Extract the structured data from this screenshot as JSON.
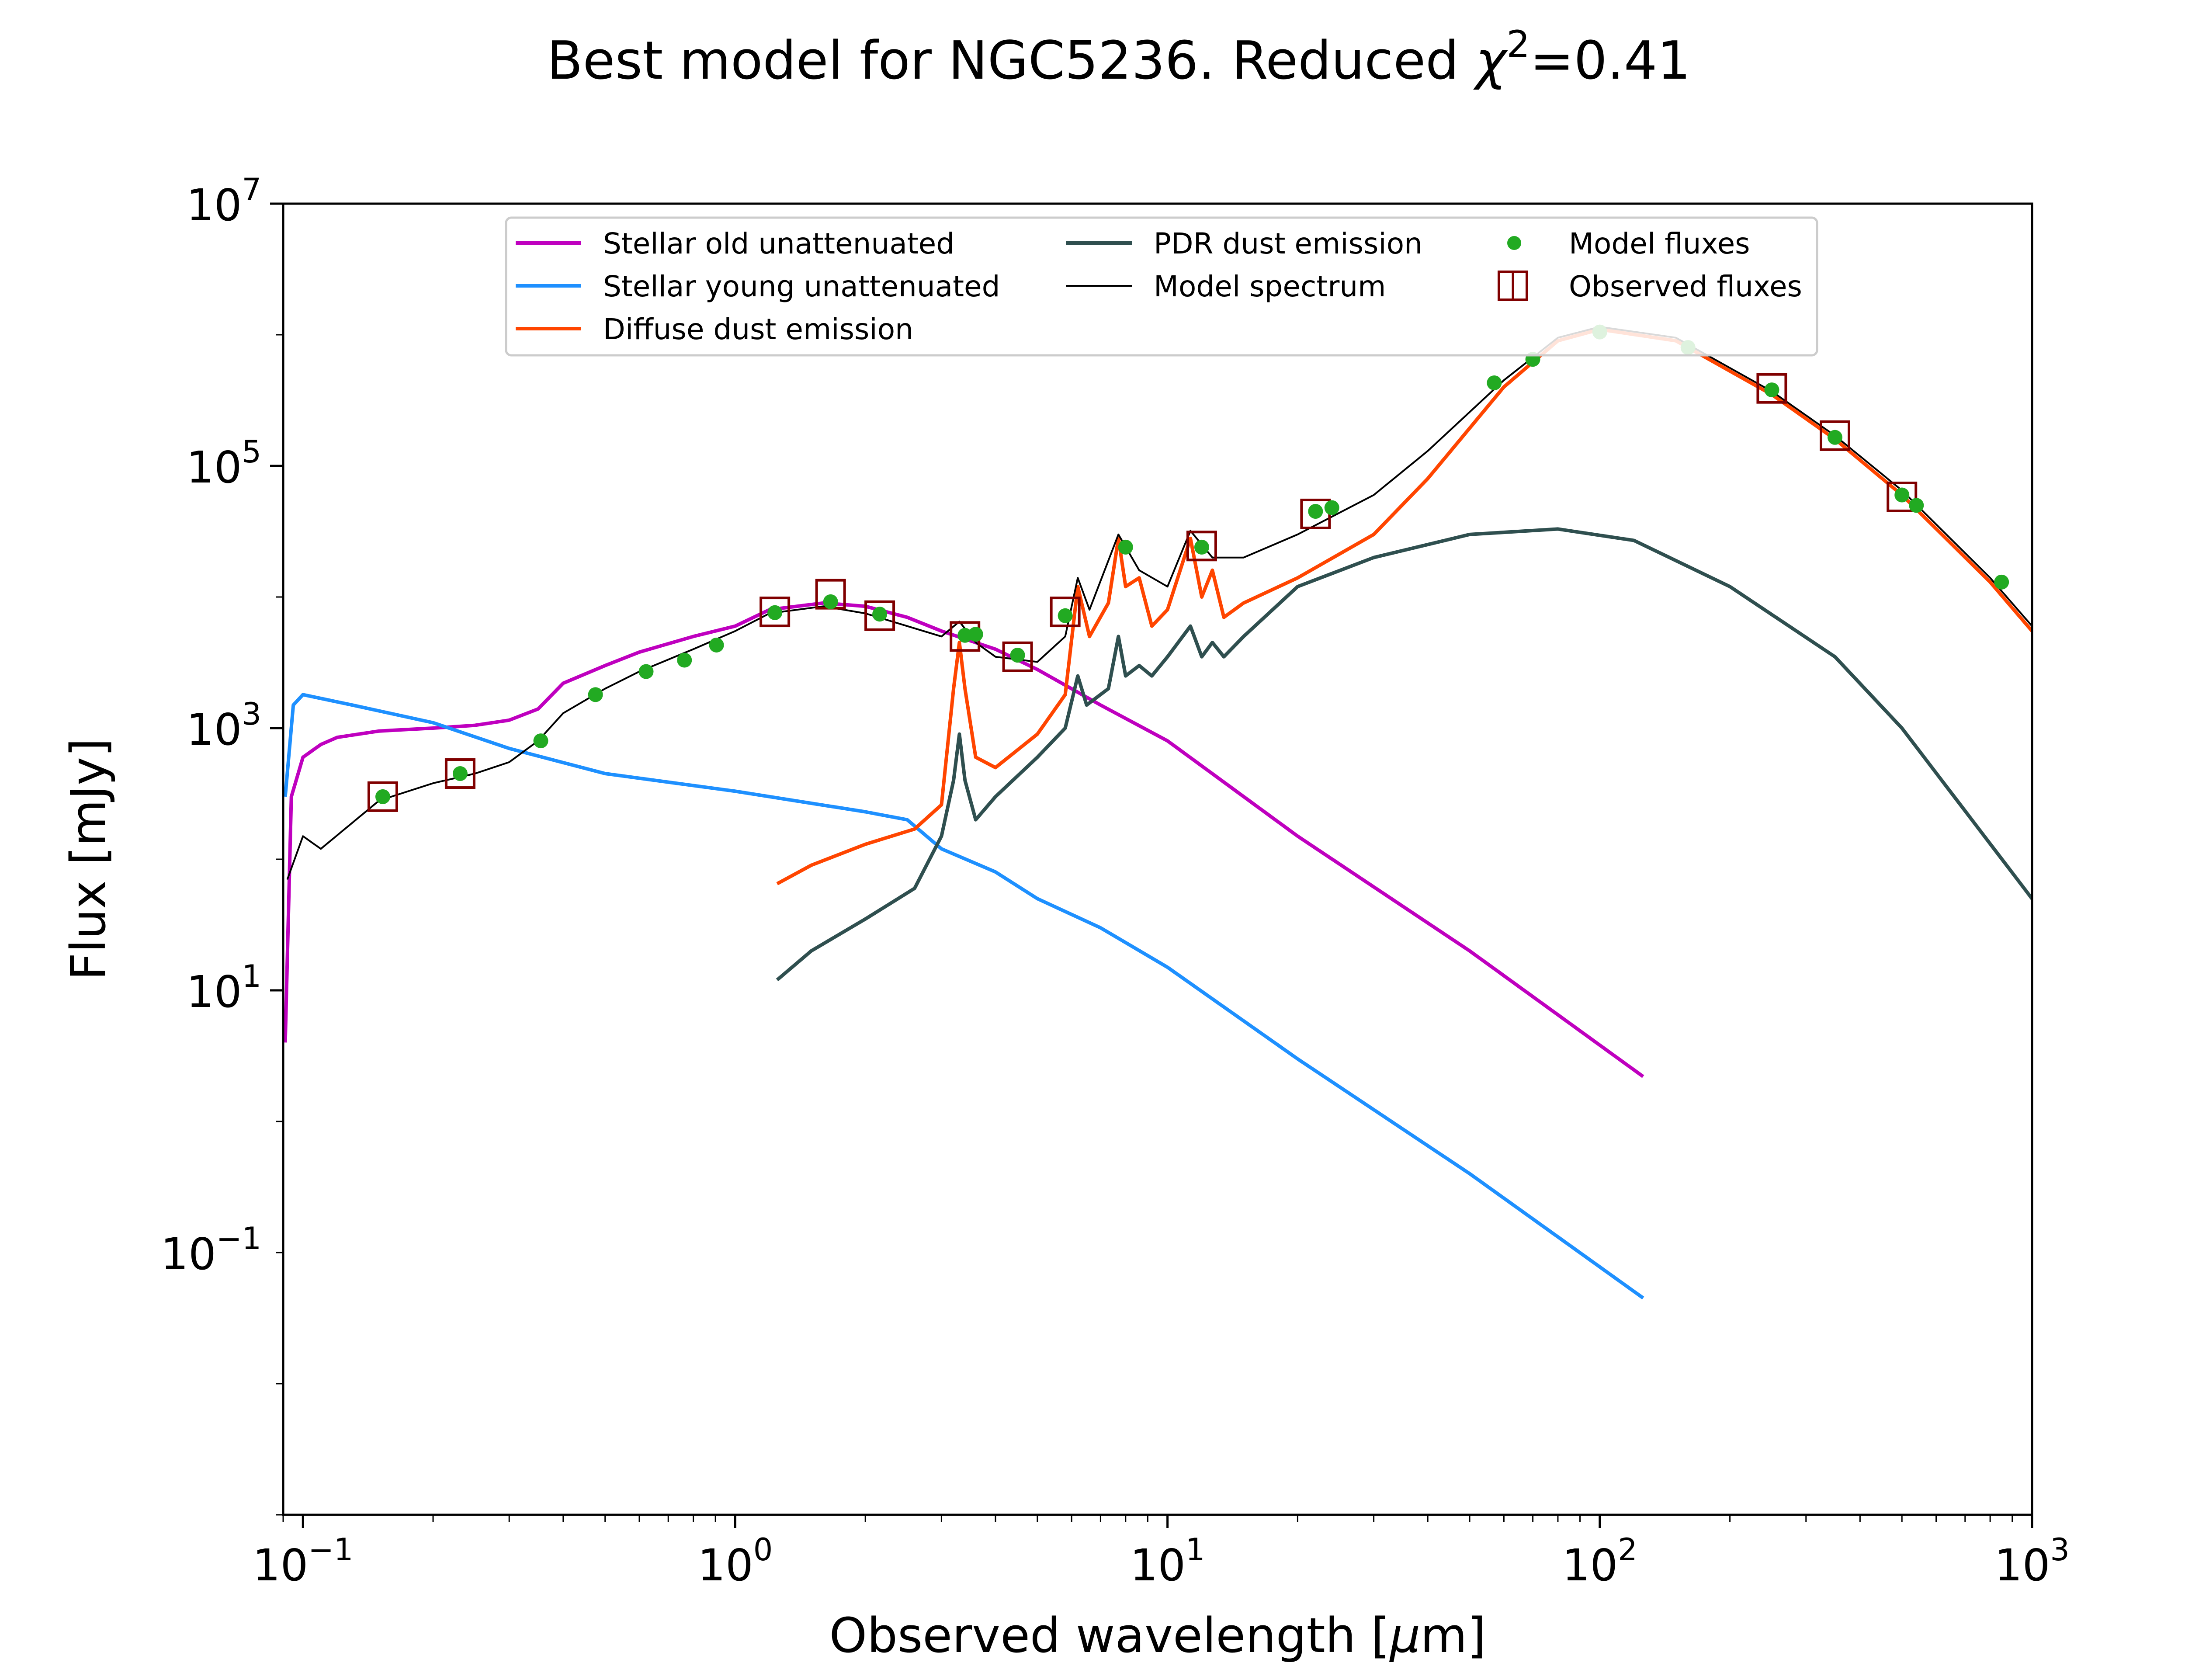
{
  "chart_data": {
    "type": "line",
    "title_main": "Best model for NGC5236. Reduced ",
    "title_chi": "χ",
    "title_exp": "2",
    "title_tail": "=0.41",
    "xlabel_main": "Observed wavelength [",
    "xlabel_mu": "μ",
    "xlabel_tail": "m]",
    "ylabel": "Flux [mJy]",
    "x_scale": "log",
    "y_scale": "log",
    "xlim": [
      0.09,
      1000
    ],
    "ylim": [
      0.001,
      10000000
    ],
    "grid": false,
    "legend_position": "top-center",
    "x_ticks": [
      {
        "value": 0.1,
        "base": "10",
        "exp": "−1"
      },
      {
        "value": 1,
        "base": "10",
        "exp": "0"
      },
      {
        "value": 10,
        "base": "10",
        "exp": "1"
      },
      {
        "value": 100,
        "base": "10",
        "exp": "2"
      },
      {
        "value": 1000,
        "base": "10",
        "exp": "3"
      }
    ],
    "y_ticks": [
      {
        "value": 0.1,
        "base": "10",
        "exp": "−1"
      },
      {
        "value": 10,
        "base": "10",
        "exp": "1"
      },
      {
        "value": 1000,
        "base": "10",
        "exp": "3"
      },
      {
        "value": 100000,
        "base": "10",
        "exp": "5"
      },
      {
        "value": 10000000,
        "base": "10",
        "exp": "7"
      }
    ],
    "legend": [
      {
        "label": "Stellar old unattenuated",
        "kind": "line",
        "color": "#bf00bf"
      },
      {
        "label": "Stellar young unattenuated",
        "kind": "line",
        "color": "#1e90ff"
      },
      {
        "label": "Diffuse dust emission",
        "kind": "line",
        "color": "#ff4500"
      },
      {
        "label": "PDR dust emission",
        "kind": "line",
        "color": "#2f4f4f"
      },
      {
        "label": "Model spectrum",
        "kind": "line",
        "color": "#000000"
      },
      {
        "label": "Model fluxes",
        "kind": "dot",
        "color": "#22aa22"
      },
      {
        "label": "Observed fluxes",
        "kind": "square",
        "color": "#800000"
      }
    ],
    "series": [
      {
        "name": "Stellar old unattenuated",
        "color": "#bf00bf",
        "points": [
          [
            0.091,
            4
          ],
          [
            0.094,
            300
          ],
          [
            0.1,
            600
          ],
          [
            0.11,
            750
          ],
          [
            0.12,
            850
          ],
          [
            0.15,
            950
          ],
          [
            0.2,
            1000
          ],
          [
            0.25,
            1050
          ],
          [
            0.3,
            1150
          ],
          [
            0.35,
            1400
          ],
          [
            0.4,
            2200
          ],
          [
            0.5,
            3000
          ],
          [
            0.6,
            3800
          ],
          [
            0.8,
            5000
          ],
          [
            1.0,
            6000
          ],
          [
            1.2,
            8000
          ],
          [
            1.6,
            9000
          ],
          [
            2.0,
            8500
          ],
          [
            2.5,
            7000
          ],
          [
            3.0,
            5500
          ],
          [
            4.0,
            4000
          ],
          [
            5.0,
            2800
          ],
          [
            7.0,
            1500
          ],
          [
            10.0,
            800
          ],
          [
            20.0,
            150
          ],
          [
            50.0,
            20
          ],
          [
            126,
            2.2
          ]
        ]
      },
      {
        "name": "Stellar young unattenuated",
        "color": "#1e90ff",
        "points": [
          [
            0.091,
            300
          ],
          [
            0.095,
            1500
          ],
          [
            0.1,
            1800
          ],
          [
            0.13,
            1500
          ],
          [
            0.2,
            1100
          ],
          [
            0.3,
            700
          ],
          [
            0.5,
            450
          ],
          [
            1.0,
            330
          ],
          [
            2.0,
            230
          ],
          [
            2.5,
            200
          ],
          [
            3.0,
            120
          ],
          [
            4.0,
            80
          ],
          [
            5.0,
            50
          ],
          [
            7.0,
            30
          ],
          [
            10.0,
            15
          ],
          [
            20.0,
            3
          ],
          [
            50.0,
            0.4
          ],
          [
            126,
            0.045
          ]
        ]
      },
      {
        "name": "Diffuse dust emission",
        "color": "#ff4500",
        "points": [
          [
            1.25,
            65
          ],
          [
            1.5,
            90
          ],
          [
            2.0,
            130
          ],
          [
            2.6,
            170
          ],
          [
            3.0,
            260
          ],
          [
            3.2,
            2000
          ],
          [
            3.3,
            4500
          ],
          [
            3.4,
            2000
          ],
          [
            3.6,
            600
          ],
          [
            4.0,
            500
          ],
          [
            5.0,
            900
          ],
          [
            5.8,
            1800
          ],
          [
            6.2,
            12000
          ],
          [
            6.6,
            5000
          ],
          [
            7.3,
            9000
          ],
          [
            7.7,
            28000
          ],
          [
            8.0,
            12000
          ],
          [
            8.6,
            14000
          ],
          [
            9.2,
            6000
          ],
          [
            10.0,
            8000
          ],
          [
            11.3,
            28000
          ],
          [
            12.0,
            10000
          ],
          [
            12.7,
            16000
          ],
          [
            13.5,
            7000
          ],
          [
            15.0,
            9000
          ],
          [
            20.0,
            14000
          ],
          [
            30.0,
            30000
          ],
          [
            40.0,
            80000
          ],
          [
            60.0,
            400000
          ],
          [
            80.0,
            900000
          ],
          [
            100.0,
            1100000
          ],
          [
            150.0,
            900000
          ],
          [
            250.0,
            350000
          ],
          [
            350.0,
            160000
          ],
          [
            500.0,
            60000
          ],
          [
            800.0,
            13000
          ],
          [
            1000.0,
            5500
          ]
        ]
      },
      {
        "name": "PDR dust emission",
        "color": "#2f4f4f",
        "points": [
          [
            1.25,
            12
          ],
          [
            1.5,
            20
          ],
          [
            2.0,
            35
          ],
          [
            2.6,
            60
          ],
          [
            3.0,
            150
          ],
          [
            3.2,
            400
          ],
          [
            3.3,
            900
          ],
          [
            3.4,
            400
          ],
          [
            3.6,
            200
          ],
          [
            4.0,
            300
          ],
          [
            5.0,
            600
          ],
          [
            5.8,
            1000
          ],
          [
            6.2,
            2500
          ],
          [
            6.5,
            1500
          ],
          [
            7.3,
            2000
          ],
          [
            7.7,
            5000
          ],
          [
            8.0,
            2500
          ],
          [
            8.6,
            3000
          ],
          [
            9.2,
            2500
          ],
          [
            10.0,
            3500
          ],
          [
            11.3,
            6000
          ],
          [
            12.0,
            3500
          ],
          [
            12.7,
            4500
          ],
          [
            13.5,
            3500
          ],
          [
            15.0,
            5000
          ],
          [
            20.0,
            12000
          ],
          [
            30.0,
            20000
          ],
          [
            50.0,
            30000
          ],
          [
            80.0,
            33000
          ],
          [
            120.0,
            27000
          ],
          [
            200.0,
            12000
          ],
          [
            350.0,
            3500
          ],
          [
            500.0,
            1000
          ],
          [
            1000.0,
            50
          ]
        ]
      },
      {
        "name": "Model spectrum",
        "color": "#000000",
        "points": [
          [
            0.092,
            70
          ],
          [
            0.1,
            150
          ],
          [
            0.11,
            120
          ],
          [
            0.15,
            280
          ],
          [
            0.2,
            380
          ],
          [
            0.25,
            450
          ],
          [
            0.3,
            550
          ],
          [
            0.35,
            800
          ],
          [
            0.4,
            1300
          ],
          [
            0.5,
            2000
          ],
          [
            0.6,
            2700
          ],
          [
            0.8,
            4000
          ],
          [
            1.0,
            5500
          ],
          [
            1.2,
            7500
          ],
          [
            1.6,
            8500
          ],
          [
            2.0,
            7500
          ],
          [
            2.5,
            6000
          ],
          [
            3.0,
            5000
          ],
          [
            3.3,
            6500
          ],
          [
            3.6,
            4500
          ],
          [
            4.0,
            3500
          ],
          [
            5.0,
            3200
          ],
          [
            5.8,
            5000
          ],
          [
            6.2,
            14000
          ],
          [
            6.6,
            8000
          ],
          [
            7.7,
            30000
          ],
          [
            8.6,
            16000
          ],
          [
            10.0,
            12000
          ],
          [
            11.3,
            32000
          ],
          [
            12.7,
            20000
          ],
          [
            15.0,
            20000
          ],
          [
            20.0,
            30000
          ],
          [
            30.0,
            60000
          ],
          [
            40.0,
            130000
          ],
          [
            60.0,
            450000
          ],
          [
            80.0,
            950000
          ],
          [
            100.0,
            1150000
          ],
          [
            150.0,
            950000
          ],
          [
            250.0,
            370000
          ],
          [
            350.0,
            170000
          ],
          [
            500.0,
            65000
          ],
          [
            800.0,
            14000
          ],
          [
            1000.0,
            6000
          ]
        ]
      }
    ],
    "model_fluxes": [
      [
        0.153,
        300
      ],
      [
        0.231,
        450
      ],
      [
        0.355,
        800
      ],
      [
        0.475,
        1800
      ],
      [
        0.622,
        2700
      ],
      [
        0.763,
        3300
      ],
      [
        0.905,
        4300
      ],
      [
        1.235,
        7600
      ],
      [
        1.662,
        9200
      ],
      [
        2.159,
        7400
      ],
      [
        3.4,
        5100
      ],
      [
        3.6,
        5200
      ],
      [
        4.5,
        3600
      ],
      [
        5.8,
        7200
      ],
      [
        8.0,
        24000
      ],
      [
        12.0,
        24000
      ],
      [
        22.0,
        45000
      ],
      [
        24.0,
        48000
      ],
      [
        57.0,
        430000
      ],
      [
        70.0,
        650000
      ],
      [
        100.0,
        1050000
      ],
      [
        160.0,
        800000
      ],
      [
        250.0,
        380000
      ],
      [
        350.0,
        165000
      ],
      [
        500.0,
        60000
      ],
      [
        540.0,
        50000
      ],
      [
        850.0,
        13000
      ]
    ],
    "observed_fluxes": [
      [
        0.153,
        300
      ],
      [
        0.231,
        450
      ],
      [
        1.235,
        7700
      ],
      [
        1.662,
        10500
      ],
      [
        2.159,
        7200
      ],
      [
        3.4,
        5000
      ],
      [
        4.5,
        3500
      ],
      [
        5.8,
        7700
      ],
      [
        12.0,
        24500
      ],
      [
        22.0,
        43000
      ],
      [
        250.0,
        390000
      ],
      [
        350.0,
        170000
      ],
      [
        500.0,
        58000
      ]
    ]
  }
}
